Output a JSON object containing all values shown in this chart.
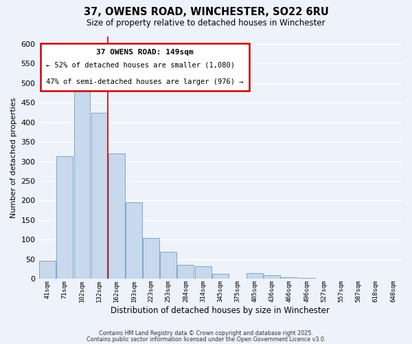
{
  "title": "37, OWENS ROAD, WINCHESTER, SO22 6RU",
  "subtitle": "Size of property relative to detached houses in Winchester",
  "xlabel": "Distribution of detached houses by size in Winchester",
  "ylabel": "Number of detached properties",
  "categories": [
    "41sqm",
    "71sqm",
    "102sqm",
    "132sqm",
    "162sqm",
    "193sqm",
    "223sqm",
    "253sqm",
    "284sqm",
    "314sqm",
    "345sqm",
    "375sqm",
    "405sqm",
    "436sqm",
    "466sqm",
    "496sqm",
    "527sqm",
    "557sqm",
    "587sqm",
    "618sqm",
    "648sqm"
  ],
  "values": [
    46,
    313,
    499,
    424,
    320,
    195,
    105,
    69,
    35,
    32,
    13,
    0,
    14,
    9,
    4,
    2,
    1,
    0,
    0,
    1,
    0
  ],
  "bar_color": "#c8d8ed",
  "bar_edge_color": "#7aaac8",
  "vline_index": 3.5,
  "vline_color": "#cc0000",
  "ylim": [
    0,
    620
  ],
  "yticks": [
    0,
    50,
    100,
    150,
    200,
    250,
    300,
    350,
    400,
    450,
    500,
    550,
    600
  ],
  "annotation_title": "37 OWENS ROAD: 149sqm",
  "annotation_line1": "← 52% of detached houses are smaller (1,080)",
  "annotation_line2": "47% of semi-detached houses are larger (976) →",
  "annotation_box_color": "#ffffff",
  "annotation_box_edge": "#cc0000",
  "background_color": "#eef2fa",
  "grid_color": "#ffffff",
  "footer_line1": "Contains HM Land Registry data © Crown copyright and database right 2025.",
  "footer_line2": "Contains public sector information licensed under the Open Government Licence v3.0."
}
